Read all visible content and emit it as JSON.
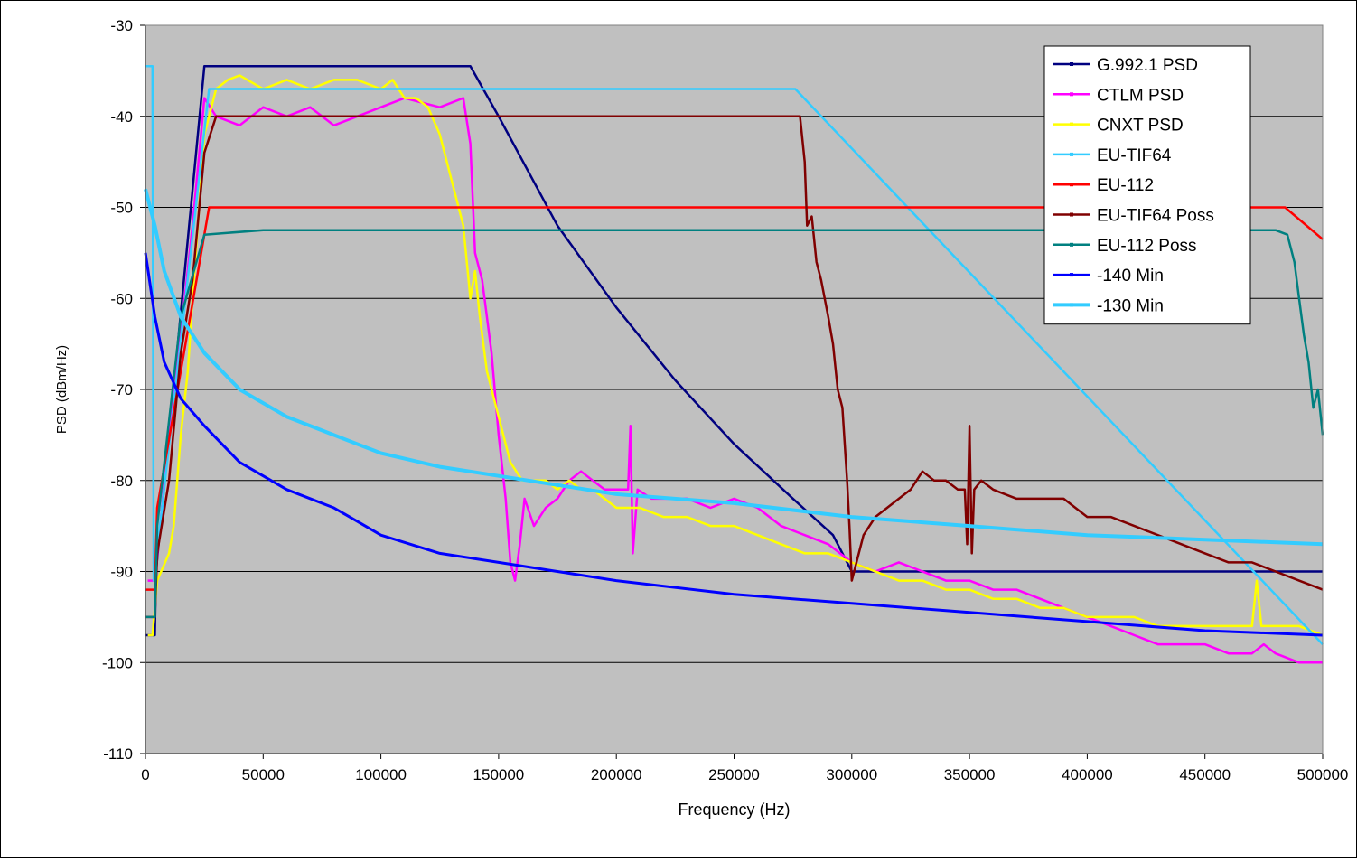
{
  "chart_data": {
    "type": "line",
    "title": "",
    "xlabel": "Frequency (Hz)",
    "ylabel": "PSD (dBm/Hz)",
    "xlim": [
      0,
      500000
    ],
    "ylim": [
      -110,
      -30
    ],
    "xticks": [
      0,
      50000,
      100000,
      150000,
      200000,
      250000,
      300000,
      350000,
      400000,
      450000,
      500000
    ],
    "yticks": [
      -30,
      -40,
      -50,
      -60,
      -70,
      -80,
      -90,
      -100,
      -110
    ],
    "grid": "horizontal",
    "plot_background": "#c0c0c0",
    "legend_position": "top-right",
    "series": [
      {
        "name": "G.992.1 PSD",
        "color": "#000080",
        "points": [
          [
            0,
            -97
          ],
          [
            4000,
            -97
          ],
          [
            4500,
            -90
          ],
          [
            25000,
            -34.5
          ],
          [
            138000,
            -34.5
          ],
          [
            150000,
            -40
          ],
          [
            175000,
            -52
          ],
          [
            200000,
            -61
          ],
          [
            225000,
            -69
          ],
          [
            250000,
            -76
          ],
          [
            275000,
            -82
          ],
          [
            292000,
            -86
          ],
          [
            300000,
            -90
          ],
          [
            500000,
            -90
          ]
        ]
      },
      {
        "name": "CTLM PSD",
        "color": "#ff00ff",
        "points": [
          [
            1000,
            -91
          ],
          [
            4000,
            -91
          ],
          [
            10000,
            -75
          ],
          [
            15000,
            -64
          ],
          [
            20000,
            -52
          ],
          [
            25000,
            -38
          ],
          [
            30000,
            -40
          ],
          [
            40000,
            -41
          ],
          [
            50000,
            -39
          ],
          [
            60000,
            -40
          ],
          [
            70000,
            -39
          ],
          [
            80000,
            -41
          ],
          [
            90000,
            -40
          ],
          [
            100000,
            -39
          ],
          [
            110000,
            -38
          ],
          [
            125000,
            -39
          ],
          [
            135000,
            -38
          ],
          [
            138000,
            -43
          ],
          [
            140000,
            -55
          ],
          [
            143000,
            -58
          ],
          [
            147000,
            -66
          ],
          [
            150000,
            -75
          ],
          [
            153000,
            -82
          ],
          [
            155000,
            -89
          ],
          [
            157000,
            -91
          ],
          [
            159000,
            -87
          ],
          [
            161000,
            -82
          ],
          [
            165000,
            -85
          ],
          [
            170000,
            -83
          ],
          [
            175000,
            -82
          ],
          [
            180000,
            -80
          ],
          [
            185000,
            -79
          ],
          [
            190000,
            -80
          ],
          [
            195000,
            -81
          ],
          [
            200000,
            -81
          ],
          [
            205000,
            -81
          ],
          [
            206000,
            -74
          ],
          [
            207000,
            -88
          ],
          [
            209000,
            -81
          ],
          [
            215000,
            -82
          ],
          [
            220000,
            -82
          ],
          [
            230000,
            -82
          ],
          [
            240000,
            -83
          ],
          [
            250000,
            -82
          ],
          [
            260000,
            -83
          ],
          [
            270000,
            -85
          ],
          [
            280000,
            -86
          ],
          [
            290000,
            -87
          ],
          [
            300000,
            -89
          ],
          [
            310000,
            -90
          ],
          [
            320000,
            -89
          ],
          [
            330000,
            -90
          ],
          [
            340000,
            -91
          ],
          [
            350000,
            -91
          ],
          [
            360000,
            -92
          ],
          [
            370000,
            -92
          ],
          [
            380000,
            -93
          ],
          [
            390000,
            -94
          ],
          [
            400000,
            -95
          ],
          [
            410000,
            -96
          ],
          [
            420000,
            -97
          ],
          [
            430000,
            -98
          ],
          [
            440000,
            -98
          ],
          [
            450000,
            -98
          ],
          [
            460000,
            -99
          ],
          [
            470000,
            -99
          ],
          [
            475000,
            -98
          ],
          [
            480000,
            -99
          ],
          [
            490000,
            -100
          ],
          [
            500000,
            -100
          ]
        ]
      },
      {
        "name": "CNXT PSD",
        "color": "#ffff00",
        "points": [
          [
            1000,
            -97
          ],
          [
            3000,
            -97
          ],
          [
            5000,
            -91
          ],
          [
            10000,
            -88
          ],
          [
            12000,
            -85
          ],
          [
            15000,
            -75
          ],
          [
            18000,
            -68
          ],
          [
            20000,
            -60
          ],
          [
            25000,
            -42
          ],
          [
            30000,
            -37
          ],
          [
            35000,
            -36
          ],
          [
            40000,
            -35.5
          ],
          [
            50000,
            -37
          ],
          [
            60000,
            -36
          ],
          [
            70000,
            -37
          ],
          [
            80000,
            -36
          ],
          [
            90000,
            -36
          ],
          [
            100000,
            -37
          ],
          [
            105000,
            -36
          ],
          [
            110000,
            -38
          ],
          [
            115000,
            -38
          ],
          [
            120000,
            -39
          ],
          [
            125000,
            -42
          ],
          [
            130000,
            -47
          ],
          [
            135000,
            -52
          ],
          [
            138000,
            -60
          ],
          [
            140000,
            -57
          ],
          [
            142000,
            -62
          ],
          [
            145000,
            -68
          ],
          [
            150000,
            -73
          ],
          [
            155000,
            -78
          ],
          [
            160000,
            -80
          ],
          [
            165000,
            -80
          ],
          [
            170000,
            -80
          ],
          [
            175000,
            -81
          ],
          [
            180000,
            -80
          ],
          [
            185000,
            -81
          ],
          [
            190000,
            -81
          ],
          [
            195000,
            -82
          ],
          [
            200000,
            -83
          ],
          [
            210000,
            -83
          ],
          [
            220000,
            -84
          ],
          [
            230000,
            -84
          ],
          [
            240000,
            -85
          ],
          [
            250000,
            -85
          ],
          [
            260000,
            -86
          ],
          [
            270000,
            -87
          ],
          [
            280000,
            -88
          ],
          [
            290000,
            -88
          ],
          [
            300000,
            -89
          ],
          [
            310000,
            -90
          ],
          [
            320000,
            -91
          ],
          [
            330000,
            -91
          ],
          [
            340000,
            -92
          ],
          [
            350000,
            -92
          ],
          [
            360000,
            -93
          ],
          [
            370000,
            -93
          ],
          [
            380000,
            -94
          ],
          [
            390000,
            -94
          ],
          [
            400000,
            -95
          ],
          [
            410000,
            -95
          ],
          [
            420000,
            -95
          ],
          [
            430000,
            -96
          ],
          [
            440000,
            -96
          ],
          [
            450000,
            -96
          ],
          [
            460000,
            -96
          ],
          [
            470000,
            -96
          ],
          [
            472000,
            -91
          ],
          [
            474000,
            -96
          ],
          [
            480000,
            -96
          ],
          [
            490000,
            -96
          ],
          [
            500000,
            -97
          ]
        ]
      },
      {
        "name": "EU-TIF64",
        "color": "#33ccff",
        "points": [
          [
            0,
            -34.5
          ],
          [
            3000,
            -34.5
          ],
          [
            3500,
            -91
          ],
          [
            4000,
            -90
          ],
          [
            27000,
            -37
          ],
          [
            276000,
            -37
          ],
          [
            500000,
            -98
          ]
        ]
      },
      {
        "name": "EU-112",
        "color": "#ff0000",
        "points": [
          [
            0,
            -92
          ],
          [
            4000,
            -92
          ],
          [
            5000,
            -83
          ],
          [
            27000,
            -50
          ],
          [
            484000,
            -50
          ],
          [
            500000,
            -53.5
          ]
        ]
      },
      {
        "name": "EU-TIF64 Poss",
        "color": "#800000",
        "points": [
          [
            0,
            -95
          ],
          [
            4000,
            -95
          ],
          [
            5000,
            -88
          ],
          [
            10000,
            -80
          ],
          [
            15000,
            -66
          ],
          [
            20000,
            -58
          ],
          [
            25000,
            -44
          ],
          [
            30000,
            -40
          ],
          [
            50000,
            -40
          ],
          [
            100000,
            -40
          ],
          [
            150000,
            -40
          ],
          [
            200000,
            -40
          ],
          [
            250000,
            -40
          ],
          [
            278000,
            -40
          ],
          [
            280000,
            -45
          ],
          [
            281000,
            -52
          ],
          [
            283000,
            -51
          ],
          [
            285000,
            -56
          ],
          [
            287000,
            -58
          ],
          [
            290000,
            -62
          ],
          [
            292000,
            -65
          ],
          [
            294000,
            -70
          ],
          [
            296000,
            -72
          ],
          [
            298000,
            -80
          ],
          [
            299000,
            -85
          ],
          [
            300000,
            -91
          ],
          [
            302000,
            -89
          ],
          [
            305000,
            -86
          ],
          [
            310000,
            -84
          ],
          [
            315000,
            -83
          ],
          [
            320000,
            -82
          ],
          [
            325000,
            -81
          ],
          [
            330000,
            -79
          ],
          [
            335000,
            -80
          ],
          [
            340000,
            -80
          ],
          [
            345000,
            -81
          ],
          [
            348000,
            -81
          ],
          [
            349000,
            -87
          ],
          [
            350000,
            -74
          ],
          [
            351000,
            -88
          ],
          [
            352000,
            -81
          ],
          [
            355000,
            -80
          ],
          [
            360000,
            -81
          ],
          [
            370000,
            -82
          ],
          [
            380000,
            -82
          ],
          [
            390000,
            -82
          ],
          [
            400000,
            -84
          ],
          [
            410000,
            -84
          ],
          [
            420000,
            -85
          ],
          [
            430000,
            -86
          ],
          [
            440000,
            -87
          ],
          [
            450000,
            -88
          ],
          [
            460000,
            -89
          ],
          [
            470000,
            -89
          ],
          [
            480000,
            -90
          ],
          [
            490000,
            -91
          ],
          [
            500000,
            -92
          ]
        ]
      },
      {
        "name": "EU-112 Poss",
        "color": "#008080",
        "points": [
          [
            0,
            -95
          ],
          [
            4000,
            -95
          ],
          [
            5000,
            -85
          ],
          [
            15000,
            -62
          ],
          [
            25000,
            -53
          ],
          [
            50000,
            -52.5
          ],
          [
            100000,
            -52.5
          ],
          [
            150000,
            -52.5
          ],
          [
            200000,
            -52.5
          ],
          [
            250000,
            -52.5
          ],
          [
            300000,
            -52.5
          ],
          [
            350000,
            -52.5
          ],
          [
            400000,
            -52.5
          ],
          [
            450000,
            -52.5
          ],
          [
            480000,
            -52.5
          ],
          [
            485000,
            -53
          ],
          [
            488000,
            -56
          ],
          [
            490000,
            -60
          ],
          [
            492000,
            -64
          ],
          [
            494000,
            -67
          ],
          [
            496000,
            -72
          ],
          [
            498000,
            -70
          ],
          [
            500000,
            -75
          ]
        ]
      },
      {
        "name": "-140 Min",
        "color": "#0000ff",
        "points": [
          [
            0,
            -55
          ],
          [
            4000,
            -62
          ],
          [
            8000,
            -67
          ],
          [
            15000,
            -71
          ],
          [
            25000,
            -74
          ],
          [
            40000,
            -78
          ],
          [
            60000,
            -81
          ],
          [
            80000,
            -83
          ],
          [
            100000,
            -86
          ],
          [
            125000,
            -88
          ],
          [
            150000,
            -89
          ],
          [
            175000,
            -90
          ],
          [
            200000,
            -91
          ],
          [
            250000,
            -92.5
          ],
          [
            300000,
            -93.5
          ],
          [
            350000,
            -94.5
          ],
          [
            400000,
            -95.5
          ],
          [
            450000,
            -96.5
          ],
          [
            500000,
            -97
          ]
        ]
      },
      {
        "name": "-130 Min",
        "color": "#33ccff",
        "points": [
          [
            0,
            -48
          ],
          [
            4000,
            -52
          ],
          [
            8000,
            -57
          ],
          [
            15000,
            -62
          ],
          [
            25000,
            -66
          ],
          [
            40000,
            -70
          ],
          [
            60000,
            -73
          ],
          [
            80000,
            -75
          ],
          [
            100000,
            -77
          ],
          [
            125000,
            -78.5
          ],
          [
            150000,
            -79.5
          ],
          [
            175000,
            -80.5
          ],
          [
            200000,
            -81.5
          ],
          [
            250000,
            -82.5
          ],
          [
            300000,
            -84
          ],
          [
            350000,
            -85
          ],
          [
            400000,
            -86
          ],
          [
            450000,
            -86.5
          ],
          [
            500000,
            -87
          ]
        ]
      }
    ]
  }
}
